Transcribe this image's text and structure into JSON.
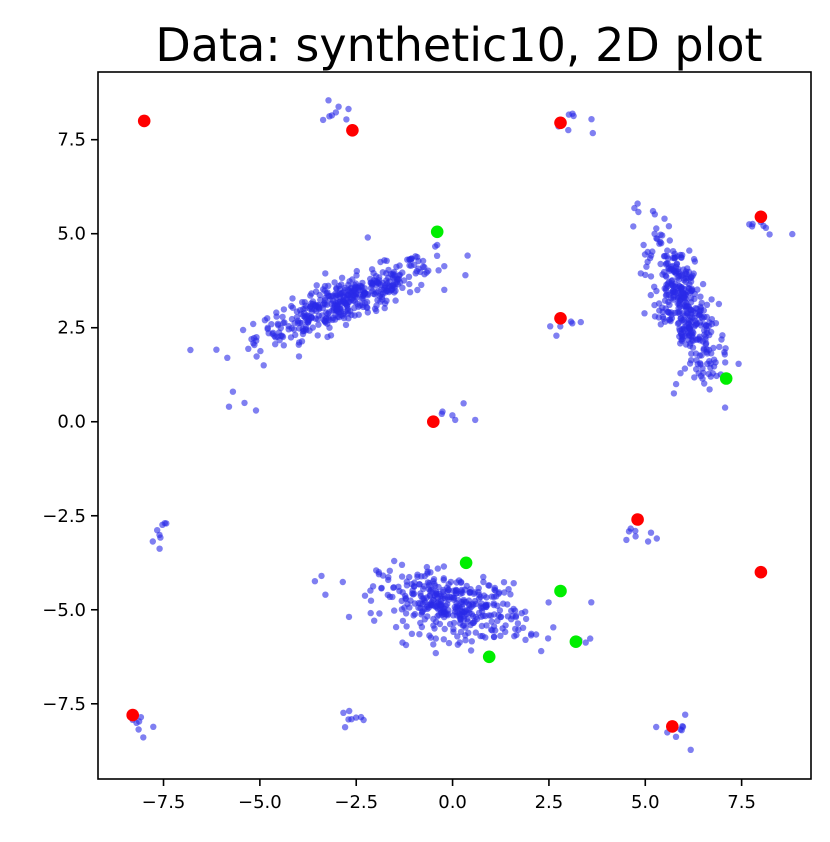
{
  "chart_data": {
    "type": "scatter",
    "title": "Data: synthetic10, 2D plot",
    "xlabel": "",
    "ylabel": "",
    "xlim": [
      -9.2,
      9.3
    ],
    "ylim": [
      -9.5,
      9.3
    ],
    "grid": false,
    "x_ticks": [
      -7.5,
      -5.0,
      -2.5,
      0.0,
      2.5,
      5.0,
      7.5
    ],
    "x_tick_labels": [
      "−7.5",
      "−5.0",
      "−2.5",
      "0.0",
      "2.5",
      "5.0",
      "7.5"
    ],
    "y_ticks": [
      7.5,
      5.0,
      2.5,
      0.0,
      -2.5,
      -5.0,
      -7.5
    ],
    "y_tick_labels": [
      "7.5",
      "5.0",
      "2.5",
      "0.0",
      "−2.5",
      "−5.0",
      "−7.5"
    ],
    "colors": {
      "data": "#2a2ae8",
      "red_centers": "#ff0000",
      "green_centers": "#00ee00"
    },
    "clusters": [
      {
        "cx": -2.8,
        "cy": 3.2,
        "n": 430,
        "sx": 1.15,
        "sy": 0.55,
        "corr": 0.85
      },
      {
        "cx": 6.0,
        "cy": 3.1,
        "n": 380,
        "sx": 0.45,
        "sy": 0.95,
        "corr": -0.7
      },
      {
        "cx": 0.0,
        "cy": -4.9,
        "n": 380,
        "sx": 0.95,
        "sy": 0.45,
        "corr": -0.35
      },
      {
        "cx": -3.0,
        "cy": 8.1,
        "n": 8,
        "sx": 0.2,
        "sy": 0.2,
        "corr": 0
      },
      {
        "cx": 3.2,
        "cy": 8.0,
        "n": 8,
        "sx": 0.3,
        "sy": 0.2,
        "corr": 0
      },
      {
        "cx": 8.0,
        "cy": 5.1,
        "n": 8,
        "sx": 0.3,
        "sy": 0.15,
        "corr": 0
      },
      {
        "cx": 2.8,
        "cy": 2.6,
        "n": 6,
        "sx": 0.3,
        "sy": 0.3,
        "corr": 0
      },
      {
        "cx": 0.0,
        "cy": 0.1,
        "n": 6,
        "sx": 0.25,
        "sy": 0.15,
        "corr": 0
      },
      {
        "cx": -7.6,
        "cy": -2.9,
        "n": 8,
        "sx": 0.15,
        "sy": 0.2,
        "corr": 0
      },
      {
        "cx": 4.8,
        "cy": -3.0,
        "n": 8,
        "sx": 0.3,
        "sy": 0.15,
        "corr": 0
      },
      {
        "cx": 3.3,
        "cy": -5.8,
        "n": 6,
        "sx": 0.2,
        "sy": 0.1,
        "corr": 0
      },
      {
        "cx": -8.1,
        "cy": -7.9,
        "n": 8,
        "sx": 0.2,
        "sy": 0.2,
        "corr": 0
      },
      {
        "cx": -2.6,
        "cy": -8.1,
        "n": 8,
        "sx": 0.2,
        "sy": 0.15,
        "corr": 0
      },
      {
        "cx": 5.9,
        "cy": -8.1,
        "n": 10,
        "sx": 0.25,
        "sy": 0.25,
        "corr": 0
      }
    ],
    "scattered_points": [
      [
        -5.8,
        0.4
      ],
      [
        -5.1,
        0.3
      ],
      [
        -5.4,
        0.5
      ],
      [
        -5.7,
        0.8
      ],
      [
        -4.9,
        1.5
      ],
      [
        -0.4,
        4.7
      ],
      [
        -2.2,
        4.9
      ],
      [
        4.8,
        5.8
      ],
      [
        5.2,
        5.6
      ],
      [
        5.5,
        5.4
      ],
      [
        6.7,
        1.2
      ],
      [
        5.8,
        1.0
      ],
      [
        -3.4,
        -4.1
      ],
      [
        -3.3,
        -4.6
      ],
      [
        3.6,
        -4.8
      ],
      [
        2.3,
        -6.1
      ]
    ],
    "red_centers": [
      [
        -8.0,
        8.0
      ],
      [
        -2.6,
        7.75
      ],
      [
        2.8,
        7.95
      ],
      [
        8.0,
        5.45
      ],
      [
        2.8,
        2.75
      ],
      [
        -0.5,
        0.0
      ],
      [
        4.8,
        -2.6
      ],
      [
        8.0,
        -4.0
      ],
      [
        -8.3,
        -7.8
      ],
      [
        5.7,
        -8.1
      ]
    ],
    "green_centers": [
      [
        -0.4,
        5.05
      ],
      [
        7.1,
        1.15
      ],
      [
        0.35,
        -3.75
      ],
      [
        2.8,
        -4.5
      ],
      [
        3.2,
        -5.85
      ],
      [
        0.95,
        -6.25
      ]
    ]
  }
}
